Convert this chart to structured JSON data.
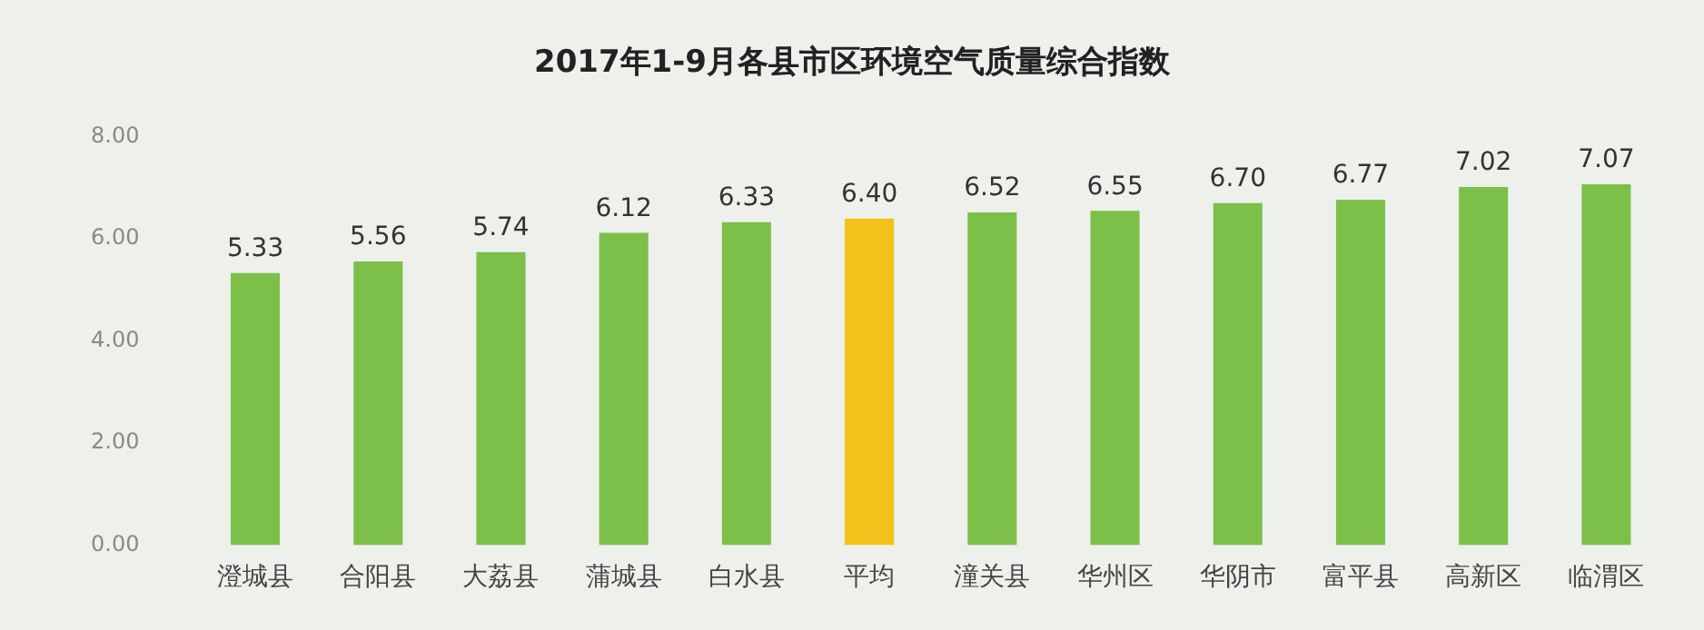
{
  "chart_data": {
    "type": "bar",
    "title": "2017年1-9月各县市区环境空气质量综合指数",
    "categories": [
      "澄城县",
      "合阳县",
      "大荔县",
      "蒲城县",
      "白水县",
      "平均",
      "潼关县",
      "华州区",
      "华阴市",
      "富平县",
      "高新区",
      "临渭区"
    ],
    "values": [
      5.33,
      5.56,
      5.74,
      6.12,
      6.33,
      6.4,
      6.52,
      6.55,
      6.7,
      6.77,
      7.02,
      7.07
    ],
    "value_labels": [
      "5.33",
      "5.56",
      "5.74",
      "6.12",
      "6.33",
      "6.40",
      "6.52",
      "6.55",
      "6.70",
      "6.77",
      "7.02",
      "7.07"
    ],
    "colors": [
      "#7cc04a",
      "#7cc04a",
      "#7cc04a",
      "#7cc04a",
      "#7cc04a",
      "#f2c21b",
      "#7cc04a",
      "#7cc04a",
      "#7cc04a",
      "#7cc04a",
      "#7cc04a",
      "#7cc04a"
    ],
    "ylim": [
      0,
      8
    ],
    "yticks": [
      {
        "value": 0,
        "label": "0.00"
      },
      {
        "value": 2,
        "label": "2.00"
      },
      {
        "value": 4,
        "label": "4.00"
      },
      {
        "value": 6,
        "label": "6.00"
      },
      {
        "value": 8,
        "label": "8.00"
      }
    ],
    "grid": false,
    "legend": false
  }
}
